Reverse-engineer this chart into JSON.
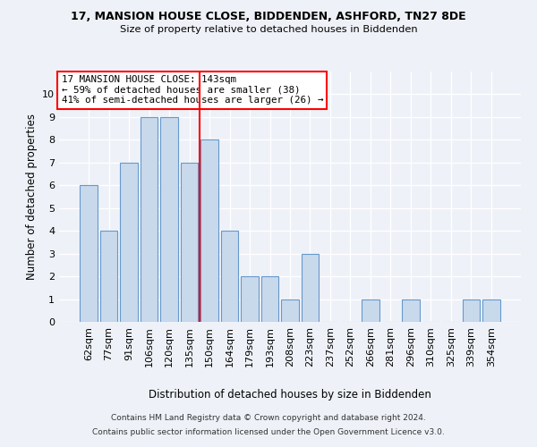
{
  "title1": "17, MANSION HOUSE CLOSE, BIDDENDEN, ASHFORD, TN27 8DE",
  "title2": "Size of property relative to detached houses in Biddenden",
  "xlabel": "Distribution of detached houses by size in Biddenden",
  "ylabel": "Number of detached properties",
  "categories": [
    "62sqm",
    "77sqm",
    "91sqm",
    "106sqm",
    "120sqm",
    "135sqm",
    "150sqm",
    "164sqm",
    "179sqm",
    "193sqm",
    "208sqm",
    "223sqm",
    "237sqm",
    "252sqm",
    "266sqm",
    "281sqm",
    "296sqm",
    "310sqm",
    "325sqm",
    "339sqm",
    "354sqm"
  ],
  "values": [
    6,
    4,
    7,
    9,
    9,
    7,
    8,
    4,
    2,
    2,
    1,
    3,
    0,
    0,
    1,
    0,
    1,
    0,
    0,
    1,
    1
  ],
  "bar_color": "#c9d9ec",
  "bar_edge_color": "#6699cc",
  "annotation_line1": "17 MANSION HOUSE CLOSE: 143sqm",
  "annotation_line2": "← 59% of detached houses are smaller (38)",
  "annotation_line3": "41% of semi-detached houses are larger (26) →",
  "annotation_box_color": "white",
  "annotation_box_edge": "red",
  "vline_color": "red",
  "vline_x": 5.5,
  "ylim": [
    0,
    11
  ],
  "yticks": [
    0,
    1,
    2,
    3,
    4,
    5,
    6,
    7,
    8,
    9,
    10,
    11
  ],
  "footnote1": "Contains HM Land Registry data © Crown copyright and database right 2024.",
  "footnote2": "Contains public sector information licensed under the Open Government Licence v3.0.",
  "bg_color": "#eef2f8"
}
